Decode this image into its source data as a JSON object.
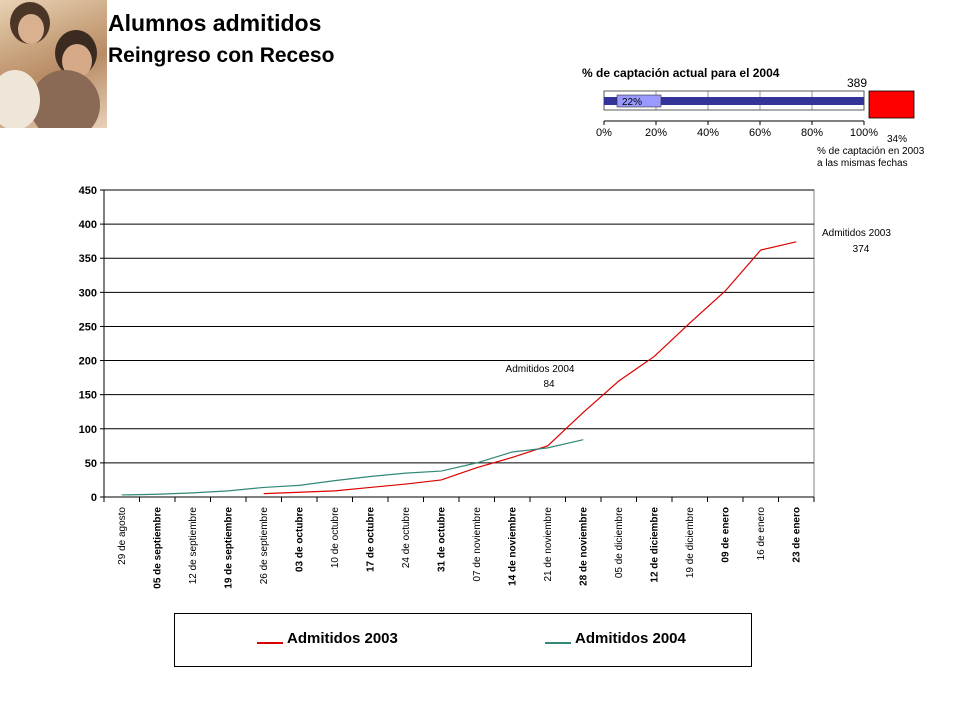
{
  "header": {
    "title": "Alumnos admitidos",
    "subtitle": "Reingreso con Receso"
  },
  "gauge": {
    "title": "% de captación actual para el 2004",
    "current_percent": 22,
    "current_label": "22%",
    "top_value": "389",
    "previous_label": "34%",
    "note_line1": "% de captación en 2003",
    "note_line2": "a las mismas fechas",
    "ticks": [
      "0%",
      "20%",
      "40%",
      "60%",
      "80%",
      "100%"
    ],
    "bar_color": "#333399",
    "marker_color": "#ff0000"
  },
  "chart_data": {
    "type": "line",
    "categories": [
      "29 de agosto",
      "05 de septiembre",
      "12 de septiembre",
      "19 de septiembre",
      "26 de septiembre",
      "03 de octubre",
      "10 de octubre",
      "17 de octubre",
      "24 de octubre",
      "31 de octubre",
      "07 de noviembre",
      "14 de noviembre",
      "21 de noviembre",
      "28 de noviembre",
      "05 de diciembre",
      "12 de diciembre",
      "19 de diciembre",
      "09 de enero",
      "16 de enero",
      "23 de enero"
    ],
    "yticks": [
      "0",
      "50",
      "100",
      "150",
      "200",
      "250",
      "300",
      "350",
      "400",
      "450"
    ],
    "ylim": [
      0,
      450
    ],
    "grid": true,
    "legend": "bottom",
    "series": [
      {
        "name": "Admitidos 2003",
        "color": "#dd0000",
        "values": [
          null,
          null,
          null,
          null,
          5,
          7,
          9,
          14,
          19,
          25,
          43,
          58,
          75,
          124,
          170,
          206,
          255,
          302,
          362,
          374
        ]
      },
      {
        "name": "Admitidos 2004",
        "color": "#338877",
        "values": [
          3,
          4,
          6,
          9,
          14,
          17,
          24,
          30,
          35,
          38,
          50,
          66,
          72,
          84,
          null,
          null,
          null,
          null,
          null,
          null
        ]
      }
    ],
    "annotations": [
      {
        "title": "Admitidos 2003",
        "value": "374"
      },
      {
        "title": "Admitidos 2004",
        "value": "84"
      }
    ]
  }
}
